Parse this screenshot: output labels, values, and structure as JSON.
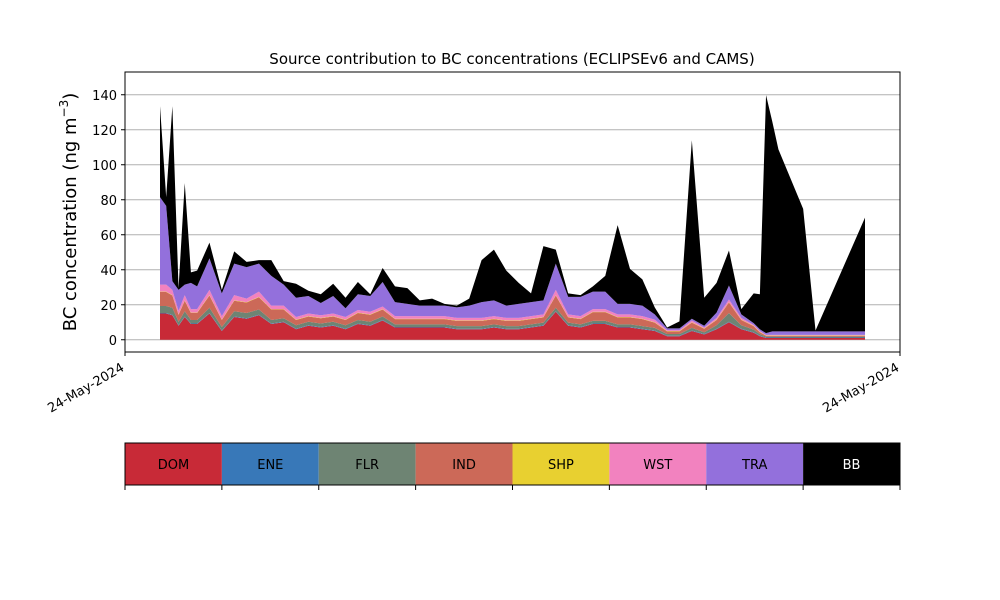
{
  "chart_data": {
    "type": "area",
    "stacked": true,
    "title": "Source contribution to BC concentrations (ECLIPSEv6 and CAMS)",
    "ylabel": "BC concentration (ng m",
    "ylabel_sup": "−3",
    "ylabel_close": ")",
    "xlabel": "",
    "x_tick_labels": [
      "24-May-2024",
      "24-May-2024"
    ],
    "ylim": [
      -7,
      153
    ],
    "yticks": [
      0,
      20,
      40,
      60,
      80,
      100,
      120,
      140
    ],
    "grid": "horizontal",
    "x": [
      0,
      0.5,
      1,
      1.5,
      2,
      2.5,
      3,
      4,
      5,
      6,
      7,
      8,
      9,
      10,
      11,
      12,
      13,
      14,
      15,
      16,
      17,
      18,
      19,
      20,
      21,
      22,
      23,
      24,
      25,
      26,
      27,
      28,
      29,
      30,
      31,
      32,
      33,
      34,
      35,
      36,
      37,
      38,
      39,
      40,
      41,
      42,
      43,
      44,
      45,
      46,
      47,
      48,
      48.5,
      49,
      49.5,
      50,
      51,
      52,
      53,
      57
    ],
    "series": [
      {
        "name": "DOM",
        "color": "#c82a37",
        "values": [
          15,
          15,
          14,
          8,
          13,
          9,
          9,
          15,
          5,
          13,
          12,
          14,
          9,
          10,
          6,
          8,
          7,
          8,
          6,
          9,
          8,
          11,
          7,
          7,
          7,
          7,
          7,
          6,
          6,
          6,
          7,
          6,
          6,
          7,
          8,
          16,
          8,
          7,
          9,
          9,
          7,
          7,
          6,
          5,
          2,
          2,
          5,
          3,
          6,
          10,
          6,
          4,
          2,
          1,
          1,
          1,
          1,
          1,
          1,
          1
        ]
      },
      {
        "name": "ENE",
        "color": "#3878b8",
        "values": [
          0.3,
          0.3,
          0.3,
          0.3,
          0.3,
          0.3,
          0.3,
          0.3,
          0.3,
          0.3,
          0.3,
          0.3,
          0.3,
          0.3,
          0.3,
          0.3,
          0.3,
          0.3,
          0.3,
          0.3,
          0.3,
          0.3,
          0.3,
          0.3,
          0.3,
          0.3,
          0.3,
          0.3,
          0.3,
          0.3,
          0.3,
          0.3,
          0.3,
          0.3,
          0.3,
          0.3,
          0.3,
          0.3,
          0.3,
          0.3,
          0.3,
          0.3,
          0.3,
          0.3,
          0.3,
          0.3,
          0.3,
          0.3,
          0.3,
          0.3,
          0.3,
          0.3,
          0.3,
          0.3,
          0.3,
          0.3,
          0.3,
          0.3,
          0.3,
          0.3
        ]
      },
      {
        "name": "FLR",
        "color": "#6e8473",
        "values": [
          4,
          4,
          4,
          2,
          3,
          2,
          2,
          3,
          2,
          3,
          3,
          3,
          2,
          2,
          2,
          2,
          2,
          2,
          2,
          2,
          2,
          2,
          1.5,
          1.5,
          1.5,
          1.5,
          1.5,
          1.5,
          1.5,
          1.5,
          1.5,
          1.5,
          1.5,
          1.5,
          1.5,
          2,
          1.5,
          1.5,
          1.5,
          1.5,
          1.5,
          1.5,
          1.5,
          1.5,
          1,
          1,
          1.5,
          1,
          2,
          5,
          2,
          1.5,
          1,
          0.5,
          0.5,
          0.5,
          0.5,
          0.5,
          0.5,
          0.5
        ]
      },
      {
        "name": "IND",
        "color": "#cc6958",
        "values": [
          8,
          8,
          7,
          4,
          6,
          4,
          4,
          7,
          4,
          6,
          6,
          7,
          6,
          5,
          3,
          3,
          3,
          3,
          3,
          4,
          4,
          4,
          3,
          3,
          3,
          3,
          3,
          3,
          3,
          3,
          3,
          3,
          3,
          3,
          3,
          7,
          3,
          3,
          5,
          5,
          4,
          4,
          4,
          3,
          1.5,
          1.5,
          3,
          2,
          3,
          6,
          3,
          2,
          1,
          0.5,
          0.5,
          0.5,
          0.5,
          0.5,
          0.5,
          0.5
        ]
      },
      {
        "name": "SHP",
        "color": "#e8d030",
        "values": [
          0.2,
          0.2,
          0.2,
          0.2,
          0.2,
          0.2,
          0.2,
          0.2,
          0.2,
          0.2,
          0.2,
          0.2,
          0.2,
          0.2,
          0.2,
          0.2,
          0.2,
          0.2,
          0.2,
          0.2,
          0.2,
          0.2,
          0.2,
          0.2,
          0.2,
          0.2,
          0.2,
          0.2,
          0.2,
          0.2,
          0.2,
          0.2,
          0.2,
          0.2,
          0.2,
          0.2,
          0.2,
          0.2,
          0.2,
          0.2,
          0.2,
          0.2,
          0.2,
          0.2,
          0.2,
          0.2,
          0.2,
          0.2,
          0.2,
          0.2,
          0.2,
          0.2,
          0.2,
          0.2,
          0.2,
          0.2,
          0.2,
          0.2,
          0.2,
          0.2
        ]
      },
      {
        "name": "WST",
        "color": "#f282bf",
        "values": [
          4,
          4,
          3,
          2,
          3,
          2,
          2,
          3,
          2,
          3,
          2,
          3,
          2,
          2,
          1.5,
          1.5,
          1.5,
          1.5,
          1.5,
          1.5,
          1.5,
          1.5,
          1.5,
          1.5,
          1.5,
          1.5,
          1.5,
          1.5,
          1.5,
          1.5,
          1.5,
          1.5,
          1.5,
          1.5,
          1.5,
          3,
          1.5,
          1.5,
          1.5,
          1.5,
          1.5,
          1.5,
          1.5,
          1.5,
          0.5,
          0.5,
          1,
          0.5,
          1,
          1.5,
          1,
          0.5,
          0.5,
          0.3,
          0.3,
          0.3,
          0.3,
          0.3,
          0.3,
          0.3
        ]
      },
      {
        "name": "TRA",
        "color": "#9370dc",
        "values": [
          50,
          45,
          5,
          12,
          6,
          15,
          13,
          18,
          13,
          18,
          18,
          16,
          17,
          12,
          11,
          10,
          7,
          10,
          5,
          9,
          9,
          14,
          8,
          7,
          6,
          6,
          6,
          6,
          7,
          9,
          9,
          7,
          8,
          8,
          8,
          15,
          10,
          11,
          10,
          10,
          6,
          6,
          6,
          3,
          1,
          1,
          1,
          1,
          3,
          8,
          2,
          1,
          1,
          1,
          2,
          2,
          2,
          2,
          2,
          2
        ]
      },
      {
        "name": "BB",
        "color": "#000000",
        "values": [
          52,
          5,
          100,
          1,
          58,
          6,
          9,
          9,
          2,
          7,
          3,
          2,
          9,
          2,
          8,
          3,
          5,
          7,
          6,
          7,
          1,
          8,
          9,
          9,
          3,
          4,
          1,
          1,
          4,
          24,
          29,
          20,
          12,
          5,
          31,
          8,
          2,
          1,
          3,
          9,
          45,
          20,
          15,
          4,
          0.5,
          4,
          102,
          16,
          17,
          20,
          3,
          17,
          20,
          136,
          120,
          104,
          87,
          70,
          0.5,
          65
        ]
      }
    ],
    "legend": [
      "DOM",
      "ENE",
      "FLR",
      "IND",
      "SHP",
      "WST",
      "TRA",
      "BB"
    ],
    "legend_text_colors": [
      "#000000",
      "#000000",
      "#000000",
      "#000000",
      "#000000",
      "#000000",
      "#000000",
      "#ffffff"
    ],
    "legend_placement": "below"
  }
}
